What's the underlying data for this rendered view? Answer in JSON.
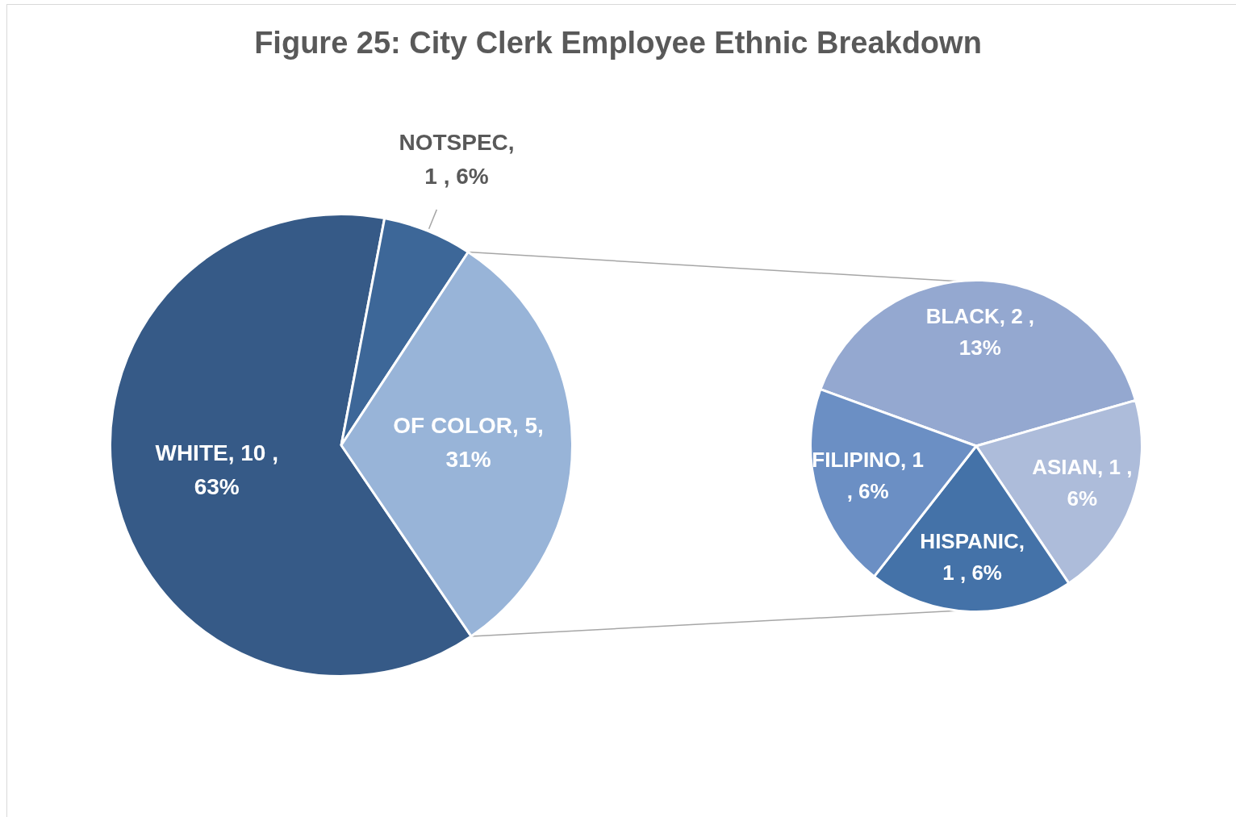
{
  "chart_data": [
    {
      "type": "pie",
      "title": "Figure 25: City Clerk Employee Ethnic Breakdown",
      "categories": [
        "WHITE",
        "NOTSPEC",
        "OF COLOR"
      ],
      "values": [
        10,
        1,
        5
      ],
      "colors": [
        "#365a87",
        "#3d6798",
        "#98b4d8"
      ],
      "value_labels": [
        ",  10 , 63%",
        ", 1 , 6%",
        ", 5, 31%"
      ]
    },
    {
      "type": "pie",
      "categories": [
        "BLACK",
        "ASIAN",
        "HISPANIC",
        "FILIPINO"
      ],
      "values": [
        2,
        1,
        1,
        1
      ],
      "colors": [
        "#94a8d0",
        "#adbcda",
        "#4472a8",
        "#6b8fc4"
      ],
      "value_labels": [
        ",  2 , 13%",
        ",  1 , 6%",
        ", 1 , 6%",
        ",  1 , 6%"
      ]
    }
  ]
}
